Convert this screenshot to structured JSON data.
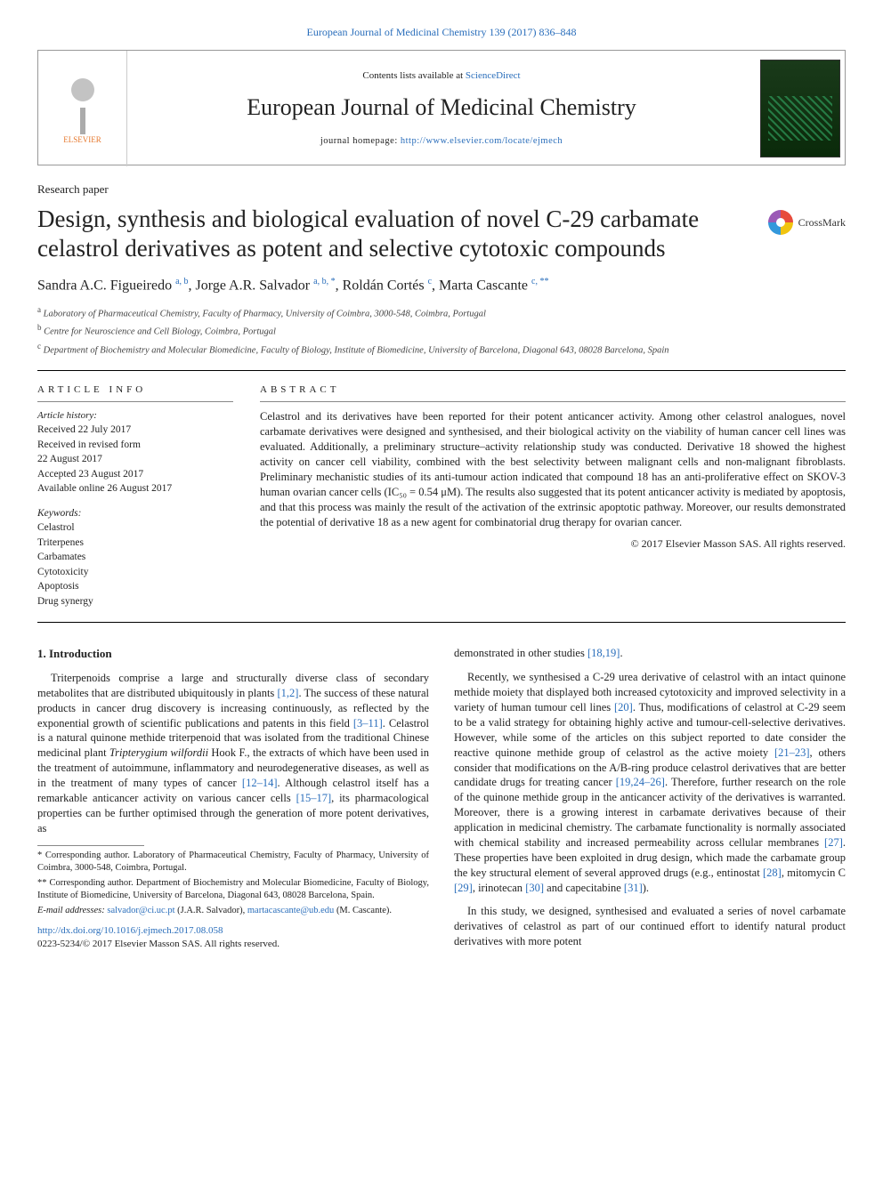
{
  "header": {
    "citation_link_text": "European Journal of Medicinal Chemistry 139 (2017) 836–848",
    "contents_prefix": "Contents lists available at ",
    "contents_link": "ScienceDirect",
    "journal_name": "European Journal of Medicinal Chemistry",
    "homepage_prefix": "journal homepage: ",
    "homepage_url": "http://www.elsevier.com/locate/ejmech",
    "publisher_logo_label": "ELSEVIER"
  },
  "paper": {
    "type": "Research paper",
    "title": "Design, synthesis and biological evaluation of novel C-29 carbamate celastrol derivatives as potent and selective cytotoxic compounds",
    "crossmark_label": "CrossMark",
    "authors_html": "Sandra A.C. Figueiredo <sup>a, b</sup>, Jorge A.R. Salvador <sup>a, b, *</sup>, Roldán Cortés <sup>c</sup>, Marta Cascante <sup>c, **</sup>",
    "affiliations": [
      {
        "sup": "a",
        "text": "Laboratory of Pharmaceutical Chemistry, Faculty of Pharmacy, University of Coimbra, 3000-548, Coimbra, Portugal"
      },
      {
        "sup": "b",
        "text": "Centre for Neuroscience and Cell Biology, Coimbra, Portugal"
      },
      {
        "sup": "c",
        "text": "Department of Biochemistry and Molecular Biomedicine, Faculty of Biology, Institute of Biomedicine, University of Barcelona, Diagonal 643, 08028 Barcelona, Spain"
      }
    ]
  },
  "article_info": {
    "heading": "ARTICLE INFO",
    "history_label": "Article history:",
    "history": [
      "Received 22 July 2017",
      "Received in revised form",
      "22 August 2017",
      "Accepted 23 August 2017",
      "Available online 26 August 2017"
    ],
    "keywords_label": "Keywords:",
    "keywords": [
      "Celastrol",
      "Triterpenes",
      "Carbamates",
      "Cytotoxicity",
      "Apoptosis",
      "Drug synergy"
    ]
  },
  "abstract": {
    "heading": "ABSTRACT",
    "text": "Celastrol and its derivatives have been reported for their potent anticancer activity. Among other celastrol analogues, novel carbamate derivatives were designed and synthesised, and their biological activity on the viability of human cancer cell lines was evaluated. Additionally, a preliminary structure–activity relationship study was conducted. Derivative 18 showed the highest activity on cancer cell viability, combined with the best selectivity between malignant cells and non-malignant fibroblasts. Preliminary mechanistic studies of its anti-tumour action indicated that compound 18 has an anti-proliferative effect on SKOV-3 human ovarian cancer cells (IC₅₀ = 0.54 μM). The results also suggested that its potent anticancer activity is mediated by apoptosis, and that this process was mainly the result of the activation of the extrinsic apoptotic pathway. Moreover, our results demonstrated the potential of derivative 18 as a new agent for combinatorial drug therapy for ovarian cancer.",
    "copyright": "© 2017 Elsevier Masson SAS. All rights reserved."
  },
  "body": {
    "section1_heading": "1. Introduction",
    "p1": "Triterpenoids comprise a large and structurally diverse class of secondary metabolites that are distributed ubiquitously in plants [1,2]. The success of these natural products in cancer drug discovery is increasing continuously, as reflected by the exponential growth of scientific publications and patents in this field [3–11]. Celastrol is a natural quinone methide triterpenoid that was isolated from the traditional Chinese medicinal plant Tripterygium wilfordii Hook F., the extracts of which have been used in the treatment of autoimmune, inflammatory and neurodegenerative diseases, as well as in the treatment of many types of cancer [12–14]. Although celastrol itself has a remarkable anticancer activity on various cancer cells [15–17], its pharmacological properties can be further optimised through the generation of more potent derivatives, as",
    "p2": "demonstrated in other studies [18,19].",
    "p3": "Recently, we synthesised a C-29 urea derivative of celastrol with an intact quinone methide moiety that displayed both increased cytotoxicity and improved selectivity in a variety of human tumour cell lines [20]. Thus, modifications of celastrol at C-29 seem to be a valid strategy for obtaining highly active and tumour-cell-selective derivatives. However, while some of the articles on this subject reported to date consider the reactive quinone methide group of celastrol as the active moiety [21–23], others consider that modifications on the A/B-ring produce celastrol derivatives that are better candidate drugs for treating cancer [19,24–26]. Therefore, further research on the role of the quinone methide group in the anticancer activity of the derivatives is warranted. Moreover, there is a growing interest in carbamate derivatives because of their application in medicinal chemistry. The carbamate functionality is normally associated with chemical stability and increased permeability across cellular membranes [27]. These properties have been exploited in drug design, which made the carbamate group the key structural element of several approved drugs (e.g., entinostat [28], mitomycin C [29], irinotecan [30] and capecitabine [31]).",
    "p4": "In this study, we designed, synthesised and evaluated a series of novel carbamate derivatives of celastrol as part of our continued effort to identify natural product derivatives with more potent"
  },
  "footnotes": {
    "n1": "* Corresponding author. Laboratory of Pharmaceutical Chemistry, Faculty of Pharmacy, University of Coimbra, 3000-548, Coimbra, Portugal.",
    "n2": "** Corresponding author. Department of Biochemistry and Molecular Biomedicine, Faculty of Biology, Institute of Biomedicine, University of Barcelona, Diagonal 643, 08028 Barcelona, Spain.",
    "email_label": "E-mail addresses: ",
    "email1": "salvador@ci.uc.pt",
    "email1_sfx": " (J.A.R. Salvador), ",
    "email2": "martacascante@ub.edu",
    "email2_sfx": " (M. Cascante)."
  },
  "doi": {
    "url": "http://dx.doi.org/10.1016/j.ejmech.2017.08.058",
    "issn_line": "0223-5234/© 2017 Elsevier Masson SAS. All rights reserved."
  },
  "refs": {
    "r1": "[1,2]",
    "r2": "[3–11]",
    "r3": "[12–14]",
    "r4": "[15–17]",
    "r5": "[18,19]",
    "r6": "[20]",
    "r7": "[21–23]",
    "r8": "[19,24–26]",
    "r9": "[27]",
    "r10": "[28]",
    "r11": "[29]",
    "r12": "[30]",
    "r13": "[31]"
  },
  "colors": {
    "link": "#2a6ebb",
    "text": "#222222",
    "rule": "#000000"
  }
}
